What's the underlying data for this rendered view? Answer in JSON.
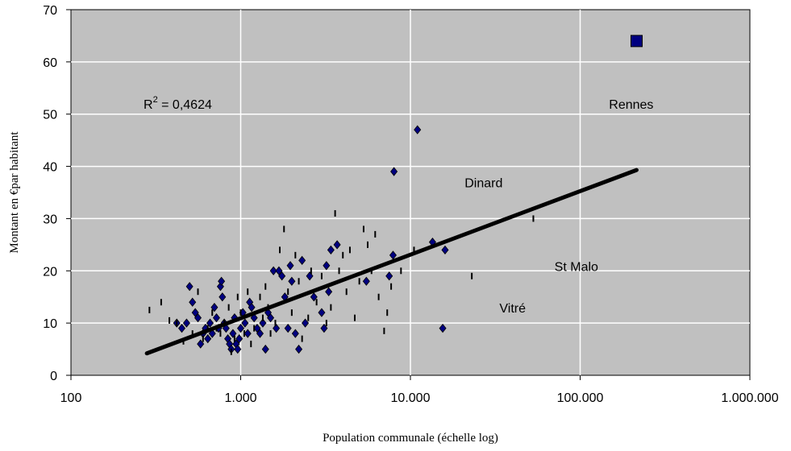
{
  "chart_data": {
    "type": "scatter",
    "xlabel": "Population communale (échelle log)",
    "ylabel": "Montant en €par habitant",
    "x_scale": "log",
    "xlim": [
      100,
      1000000
    ],
    "ylim": [
      0,
      70
    ],
    "grid": true,
    "x_ticks": [
      {
        "value": 100,
        "label": "100"
      },
      {
        "value": 1000,
        "label": "1.000"
      },
      {
        "value": 10000,
        "label": "10.000"
      },
      {
        "value": 100000,
        "label": "100.000"
      },
      {
        "value": 1000000,
        "label": "1.000.000"
      }
    ],
    "y_ticks": [
      {
        "value": 0,
        "label": "0"
      },
      {
        "value": 10,
        "label": "10"
      },
      {
        "value": 20,
        "label": "20"
      },
      {
        "value": 30,
        "label": "30"
      },
      {
        "value": 40,
        "label": "40"
      },
      {
        "value": 50,
        "label": "50"
      },
      {
        "value": 60,
        "label": "60"
      },
      {
        "value": 70,
        "label": "70"
      }
    ],
    "r_squared": {
      "base": "R",
      "exp": "2",
      "rest": " = 0,4624"
    },
    "annotations": [
      {
        "text": "Rennes",
        "x": 200000,
        "y": 51
      },
      {
        "text": "Dinard",
        "x": 27000,
        "y": 36
      },
      {
        "text": "St Malo",
        "x": 95000,
        "y": 20
      },
      {
        "text": "Vitré",
        "x": 40000,
        "y": 12
      }
    ],
    "trendline": {
      "x": [
        280,
        215000
      ],
      "y": [
        4.2,
        39.3
      ]
    },
    "highlight_point": {
      "x": 215000,
      "y": 64
    },
    "series": [
      {
        "marker": "diamond",
        "points": [
          [
            420,
            10
          ],
          [
            450,
            9
          ],
          [
            480,
            10
          ],
          [
            500,
            17
          ],
          [
            520,
            14
          ],
          [
            540,
            12
          ],
          [
            560,
            11
          ],
          [
            580,
            6
          ],
          [
            600,
            8
          ],
          [
            620,
            9
          ],
          [
            640,
            7
          ],
          [
            660,
            10
          ],
          [
            680,
            8
          ],
          [
            700,
            13
          ],
          [
            720,
            11
          ],
          [
            740,
            9
          ],
          [
            760,
            17
          ],
          [
            770,
            18
          ],
          [
            780,
            15
          ],
          [
            800,
            10
          ],
          [
            820,
            9
          ],
          [
            840,
            7
          ],
          [
            860,
            6
          ],
          [
            880,
            5
          ],
          [
            900,
            8
          ],
          [
            920,
            11
          ],
          [
            940,
            6
          ],
          [
            960,
            5
          ],
          [
            980,
            7
          ],
          [
            1000,
            9
          ],
          [
            1030,
            12
          ],
          [
            1060,
            10
          ],
          [
            1100,
            8
          ],
          [
            1130,
            14
          ],
          [
            1160,
            13
          ],
          [
            1200,
            11
          ],
          [
            1250,
            9
          ],
          [
            1300,
            8
          ],
          [
            1350,
            10
          ],
          [
            1400,
            5
          ],
          [
            1450,
            12
          ],
          [
            1500,
            11
          ],
          [
            1560,
            20
          ],
          [
            1620,
            9
          ],
          [
            1680,
            20
          ],
          [
            1750,
            19
          ],
          [
            1820,
            15
          ],
          [
            1900,
            9
          ],
          [
            1960,
            21
          ],
          [
            2000,
            18
          ],
          [
            2100,
            8
          ],
          [
            2200,
            5
          ],
          [
            2300,
            22
          ],
          [
            2400,
            10
          ],
          [
            2550,
            19
          ],
          [
            2700,
            15
          ],
          [
            3000,
            12
          ],
          [
            3100,
            9
          ],
          [
            3200,
            21
          ],
          [
            3300,
            16
          ],
          [
            3400,
            24
          ],
          [
            3700,
            25
          ],
          [
            5500,
            18
          ],
          [
            7500,
            19
          ],
          [
            7900,
            23
          ],
          [
            8000,
            39
          ],
          [
            11000,
            47
          ],
          [
            13500,
            25.5
          ],
          [
            15500,
            9
          ],
          [
            16000,
            24
          ]
        ]
      },
      {
        "marker": "dash",
        "points": [
          [
            290,
            12.5
          ],
          [
            340,
            14
          ],
          [
            380,
            10.5
          ],
          [
            420,
            10
          ],
          [
            460,
            6.5
          ],
          [
            520,
            8
          ],
          [
            560,
            16
          ],
          [
            600,
            7
          ],
          [
            640,
            9
          ],
          [
            680,
            12
          ],
          [
            720,
            9
          ],
          [
            760,
            8
          ],
          [
            800,
            10
          ],
          [
            850,
            13
          ],
          [
            880,
            4.5
          ],
          [
            920,
            7
          ],
          [
            960,
            15
          ],
          [
            1000,
            12
          ],
          [
            1050,
            8
          ],
          [
            1100,
            16
          ],
          [
            1150,
            6
          ],
          [
            1200,
            9
          ],
          [
            1300,
            15
          ],
          [
            1350,
            11
          ],
          [
            1400,
            17
          ],
          [
            1450,
            13
          ],
          [
            1500,
            8
          ],
          [
            1600,
            10
          ],
          [
            1700,
            24
          ],
          [
            1800,
            28
          ],
          [
            1900,
            16
          ],
          [
            2000,
            12
          ],
          [
            2100,
            23
          ],
          [
            2200,
            18
          ],
          [
            2300,
            7
          ],
          [
            2500,
            11
          ],
          [
            2600,
            20
          ],
          [
            2800,
            14
          ],
          [
            3000,
            19
          ],
          [
            3200,
            10
          ],
          [
            3400,
            13
          ],
          [
            3600,
            31
          ],
          [
            3800,
            20
          ],
          [
            4000,
            23
          ],
          [
            4200,
            16
          ],
          [
            4400,
            24
          ],
          [
            4700,
            11
          ],
          [
            5000,
            18
          ],
          [
            5300,
            28
          ],
          [
            5600,
            25
          ],
          [
            5900,
            20
          ],
          [
            6200,
            27
          ],
          [
            6500,
            15
          ],
          [
            7000,
            8.5
          ],
          [
            7300,
            12
          ],
          [
            7700,
            17
          ],
          [
            8800,
            20
          ],
          [
            10500,
            24
          ],
          [
            23000,
            19
          ],
          [
            53000,
            30
          ]
        ]
      }
    ]
  }
}
